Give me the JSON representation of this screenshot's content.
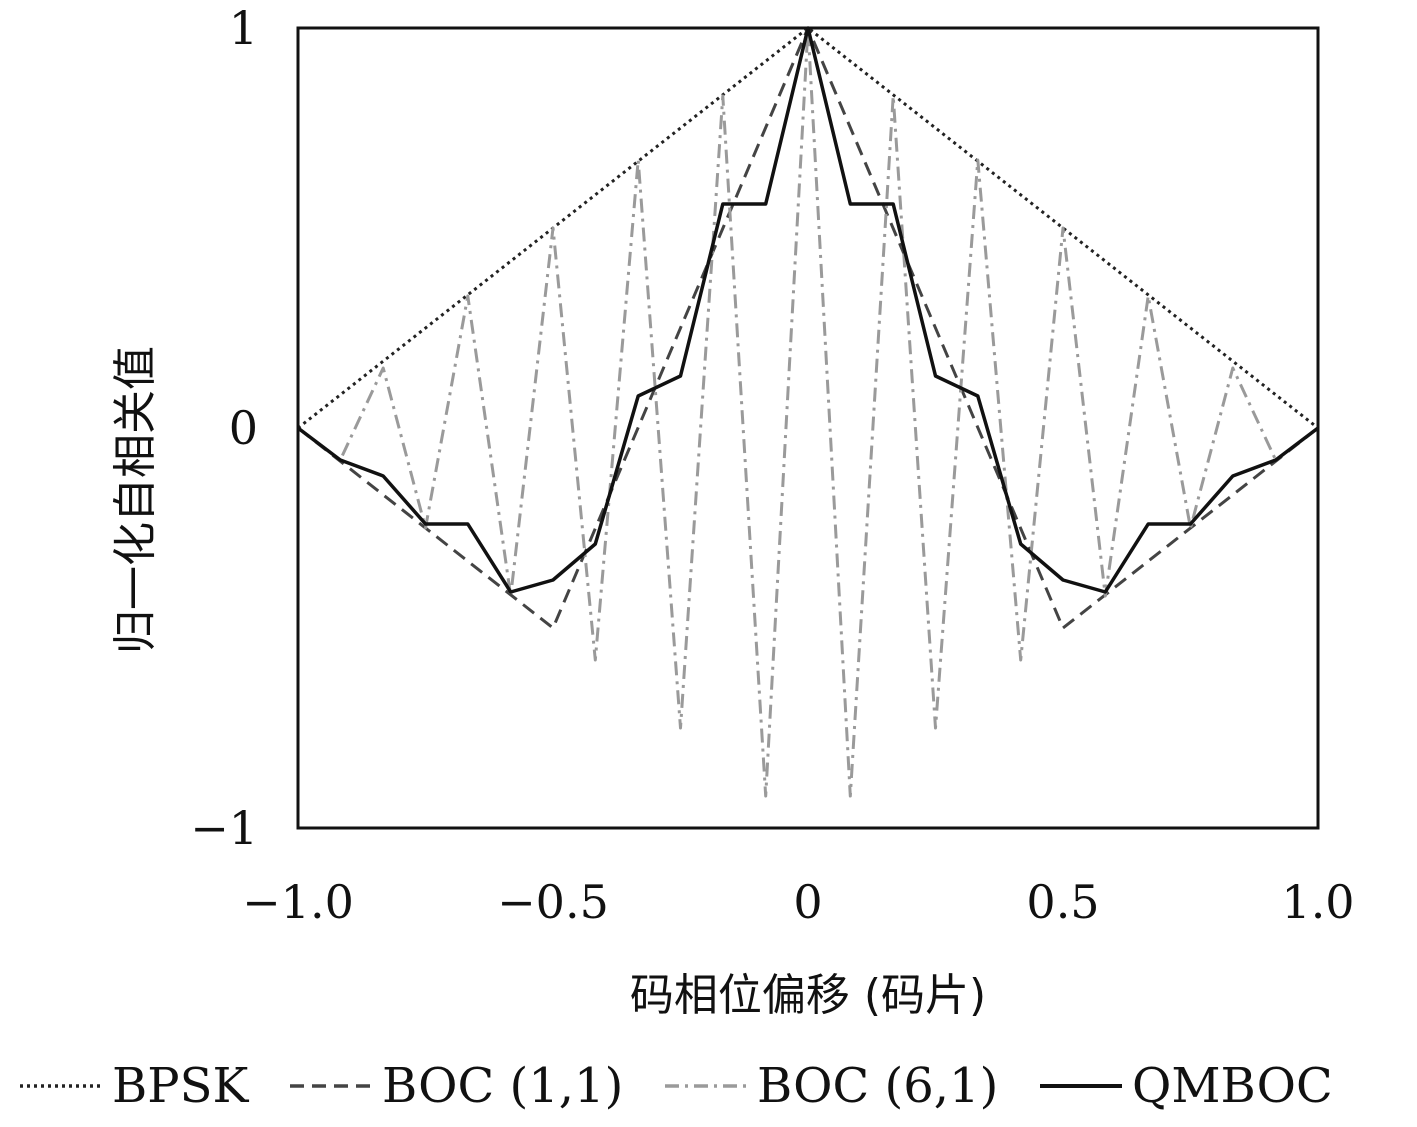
{
  "chart_data": {
    "type": "line",
    "title": "",
    "xlabel": "码相位偏移 (码片)",
    "ylabel": "归一化自相关值",
    "xlim": [
      -1.0,
      1.0
    ],
    "ylim": [
      -1,
      1
    ],
    "x_ticks": [
      -1.0,
      -0.5,
      0,
      0.5,
      1.0
    ],
    "x_tick_labels": [
      "−1.0",
      "−0.5",
      "0",
      "0.5",
      "1.0"
    ],
    "y_ticks": [
      1,
      0,
      -1
    ],
    "y_tick_labels": [
      "1",
      "0",
      "−1"
    ],
    "grid": false,
    "legend_position": "bottom",
    "series": [
      {
        "name": "BPSK",
        "style": "dotted",
        "color": "#222222",
        "points": [
          [
            -1.0,
            0.0
          ],
          [
            0.0,
            1.0
          ],
          [
            1.0,
            0.0
          ]
        ]
      },
      {
        "name": "BOC (1,1)",
        "style": "dashed",
        "color": "#444444",
        "points": [
          [
            -1.0,
            0.0
          ],
          [
            -0.5,
            -0.5
          ],
          [
            0.0,
            1.0
          ],
          [
            0.5,
            -0.5
          ],
          [
            1.0,
            0.0
          ]
        ]
      },
      {
        "name": "BOC (6,1)",
        "style": "dashdot",
        "color": "#9a9a9a",
        "points": [
          [
            -1.0,
            0.0
          ],
          [
            -0.917,
            -0.08
          ],
          [
            -0.833,
            0.15
          ],
          [
            -0.75,
            -0.25
          ],
          [
            -0.667,
            0.33
          ],
          [
            -0.583,
            -0.42
          ],
          [
            -0.5,
            0.5
          ],
          [
            -0.417,
            -0.58
          ],
          [
            -0.333,
            0.67
          ],
          [
            -0.25,
            -0.75
          ],
          [
            -0.167,
            0.83
          ],
          [
            -0.083,
            -0.92
          ],
          [
            0.0,
            1.0
          ],
          [
            0.083,
            -0.92
          ],
          [
            0.167,
            0.83
          ],
          [
            0.25,
            -0.75
          ],
          [
            0.333,
            0.67
          ],
          [
            0.417,
            -0.58
          ],
          [
            0.5,
            0.5
          ],
          [
            0.583,
            -0.42
          ],
          [
            0.667,
            0.33
          ],
          [
            0.75,
            -0.25
          ],
          [
            0.833,
            0.15
          ],
          [
            0.917,
            -0.08
          ],
          [
            1.0,
            0.0
          ]
        ]
      },
      {
        "name": "QMBOC",
        "style": "solid",
        "color": "#111111",
        "points": [
          [
            -1.0,
            0.0
          ],
          [
            -0.917,
            -0.08
          ],
          [
            -0.833,
            -0.12
          ],
          [
            -0.75,
            -0.24
          ],
          [
            -0.667,
            -0.24
          ],
          [
            -0.583,
            -0.41
          ],
          [
            -0.5,
            -0.38
          ],
          [
            -0.417,
            -0.29
          ],
          [
            -0.333,
            0.08
          ],
          [
            -0.25,
            0.13
          ],
          [
            -0.167,
            0.56
          ],
          [
            -0.083,
            0.56
          ],
          [
            0.0,
            1.0
          ],
          [
            0.083,
            0.56
          ],
          [
            0.167,
            0.56
          ],
          [
            0.25,
            0.13
          ],
          [
            0.333,
            0.08
          ],
          [
            0.417,
            -0.29
          ],
          [
            0.5,
            -0.38
          ],
          [
            0.583,
            -0.41
          ],
          [
            0.667,
            -0.24
          ],
          [
            0.75,
            -0.24
          ],
          [
            0.833,
            -0.12
          ],
          [
            0.917,
            -0.08
          ],
          [
            1.0,
            0.0
          ]
        ]
      }
    ]
  }
}
